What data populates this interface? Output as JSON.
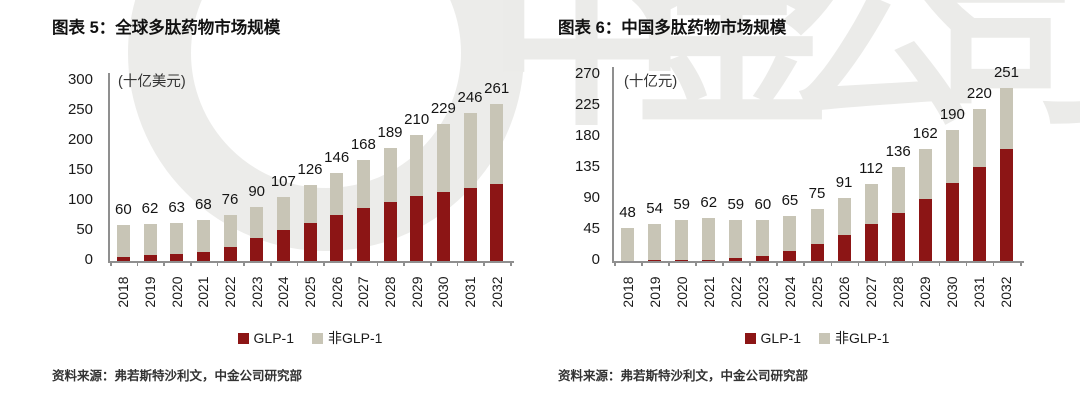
{
  "watermark": {
    "text": "中金公司"
  },
  "chart_data": [
    {
      "type": "bar",
      "stacked": true,
      "title": "图表 5：全球多肽药物市场规模",
      "unit": "(十亿美元)",
      "source": "资料来源：弗若斯特沙利文，中金公司研究部",
      "categories": [
        "2018",
        "2019",
        "2020",
        "2021",
        "2022",
        "2023",
        "2024",
        "2025",
        "2026",
        "2027",
        "2028",
        "2029",
        "2030",
        "2031",
        "2032"
      ],
      "series": [
        {
          "name": "GLP-1",
          "color": "#8C1515",
          "values": [
            7,
            10,
            12,
            15,
            24,
            38,
            52,
            63,
            77,
            89,
            98,
            108,
            115,
            121,
            129
          ]
        },
        {
          "name": "非GLP-1",
          "color": "#C8C5B6",
          "values": [
            53,
            52,
            51,
            53,
            52,
            52,
            55,
            63,
            69,
            79,
            91,
            102,
            114,
            125,
            132
          ]
        }
      ],
      "totals": [
        60,
        62,
        63,
        68,
        76,
        90,
        107,
        126,
        146,
        168,
        189,
        210,
        229,
        246,
        261
      ],
      "ylim": [
        0,
        300
      ],
      "yticks": [
        0,
        50,
        100,
        150,
        200,
        250,
        300
      ],
      "legend_position": "bottom",
      "grid": false
    },
    {
      "type": "bar",
      "stacked": true,
      "title": "图表 6：中国多肽药物市场规模",
      "unit": "(十亿元)",
      "source": "资料来源：弗若斯特沙利文，中金公司研究部",
      "categories": [
        "2018",
        "2019",
        "2020",
        "2021",
        "2022",
        "2023",
        "2024",
        "2025",
        "2026",
        "2027",
        "2028",
        "2029",
        "2030",
        "2031",
        "2032"
      ],
      "series": [
        {
          "name": "GLP-1",
          "color": "#8C1515",
          "values": [
            0,
            1,
            1,
            2,
            4,
            7,
            14,
            24,
            38,
            53,
            69,
            90,
            113,
            137,
            162
          ]
        },
        {
          "name": "非GLP-1",
          "color": "#C8C5B6",
          "values": [
            48,
            53,
            58,
            60,
            55,
            53,
            51,
            51,
            53,
            59,
            67,
            72,
            77,
            83,
            89
          ]
        }
      ],
      "totals": [
        48,
        54,
        59,
        62,
        59,
        60,
        65,
        75,
        91,
        112,
        136,
        162,
        190,
        220,
        251
      ],
      "ylim": [
        0,
        270
      ],
      "yticks": [
        0,
        45,
        90,
        135,
        180,
        225,
        270
      ],
      "legend_position": "bottom",
      "grid": false
    }
  ]
}
